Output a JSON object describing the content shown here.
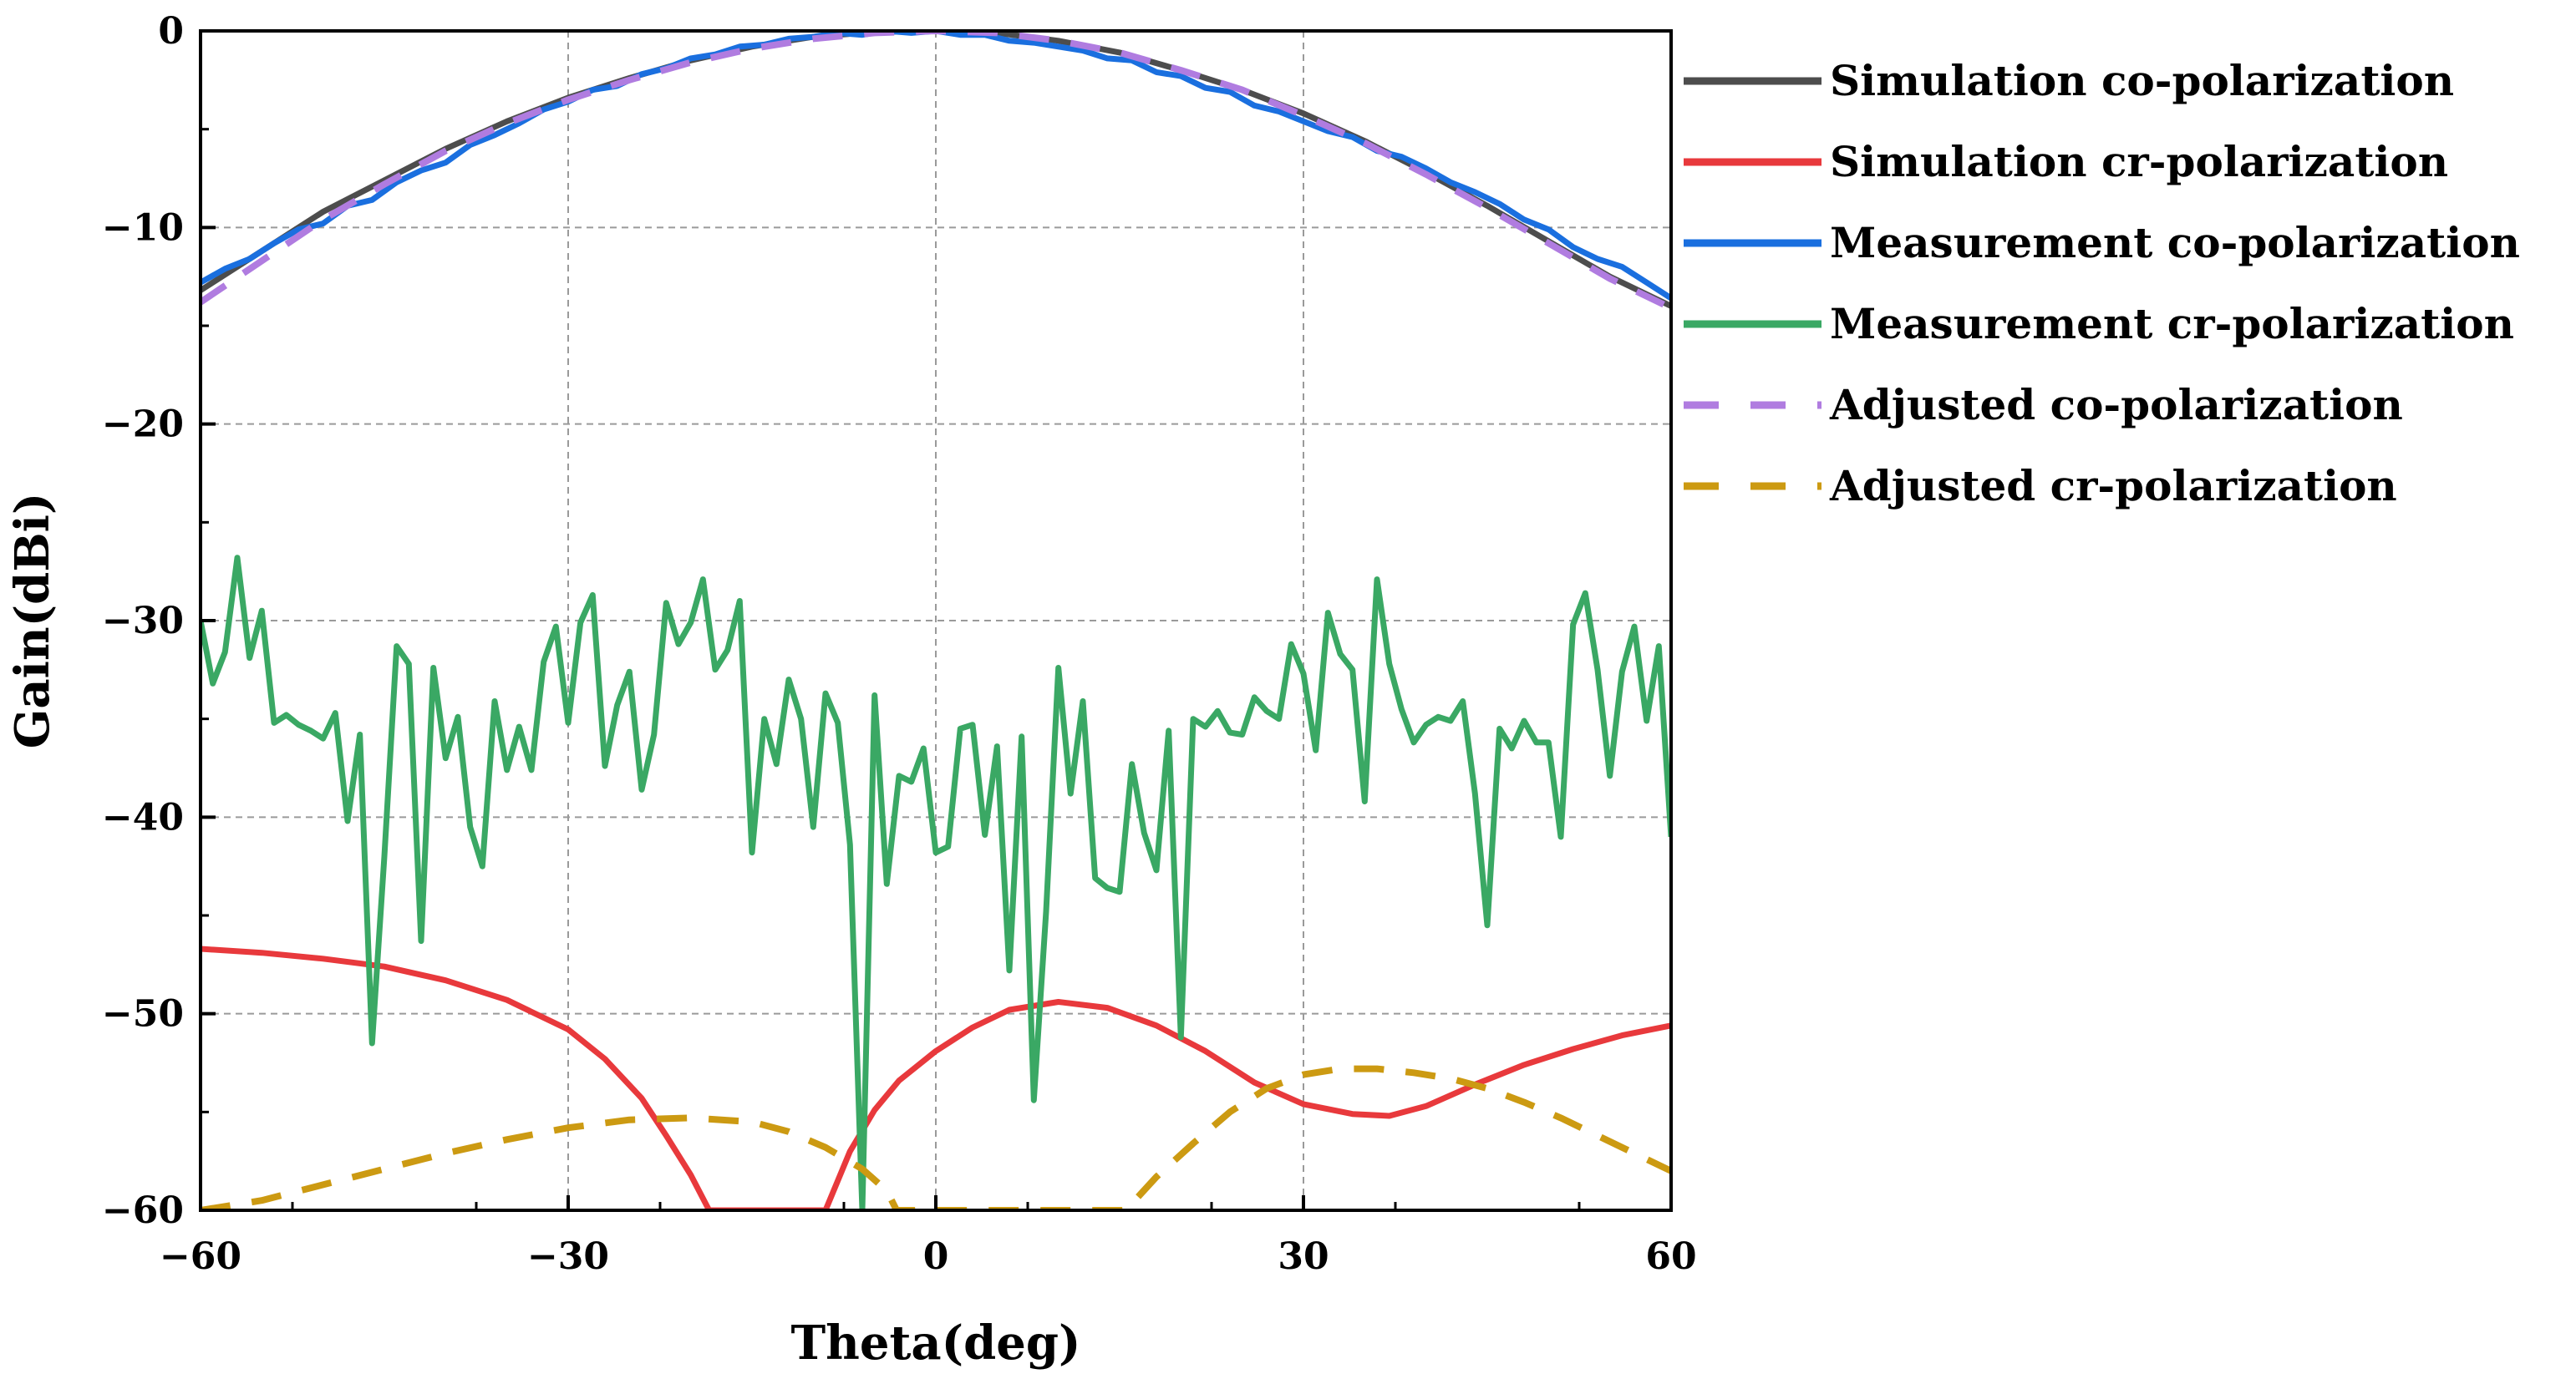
{
  "chart_data": {
    "type": "line",
    "title": "",
    "xlabel": "Theta(deg)",
    "ylabel": "Gain(dBi)",
    "xlim": [
      -60,
      60
    ],
    "ylim": [
      -60,
      0
    ],
    "xticks": [
      -60,
      -30,
      0,
      30,
      60
    ],
    "xtick_labels": [
      "−60",
      "−30",
      "0",
      "30",
      "60"
    ],
    "yticks": [
      0,
      -10,
      -20,
      -30,
      -40,
      -50,
      -60
    ],
    "ytick_labels": [
      "0",
      "−10",
      "−20",
      "−30",
      "−40",
      "−50",
      "−60"
    ],
    "grid": true,
    "legend_position": "right",
    "series": [
      {
        "name": "Simulation co-polarization",
        "color": "#4d4d4d",
        "dash": "solid",
        "x": [
          -60,
          -55,
          -50,
          -45,
          -40,
          -35,
          -30,
          -25,
          -20,
          -15,
          -10,
          -5,
          0,
          5,
          10,
          15,
          20,
          25,
          30,
          35,
          40,
          45,
          50,
          55,
          60
        ],
        "y": [
          -13.2,
          -11.2,
          -9.2,
          -7.6,
          -6.0,
          -4.6,
          -3.4,
          -2.4,
          -1.5,
          -0.8,
          -0.3,
          -0.05,
          0,
          -0.1,
          -0.5,
          -1.1,
          -2.0,
          -3.0,
          -4.2,
          -5.6,
          -7.2,
          -8.9,
          -10.7,
          -12.5,
          -14.0
        ]
      },
      {
        "name": "Simulation cr-polarization",
        "color": "#e8393c",
        "dash": "solid",
        "x": [
          -60,
          -55,
          -50,
          -45,
          -40,
          -35,
          -30,
          -27,
          -24,
          -22,
          -20,
          -18.5,
          -9,
          -7,
          -5,
          -3,
          0,
          3,
          6,
          10,
          14,
          18,
          22,
          26,
          30,
          34,
          37,
          40,
          44,
          48,
          52,
          56,
          60
        ],
        "y": [
          -46.7,
          -46.9,
          -47.2,
          -47.6,
          -48.3,
          -49.3,
          -50.8,
          -52.3,
          -54.3,
          -56.2,
          -58.2,
          -60,
          -60,
          -57.0,
          -54.9,
          -53.4,
          -51.9,
          -50.7,
          -49.8,
          -49.4,
          -49.7,
          -50.6,
          -51.9,
          -53.5,
          -54.6,
          -55.1,
          -55.2,
          -54.7,
          -53.6,
          -52.6,
          -51.8,
          -51.1,
          -50.6
        ]
      },
      {
        "name": "Measurement co-polarization",
        "color": "#1a6fdf",
        "dash": "solid",
        "x": [
          -60,
          -58,
          -56,
          -54,
          -52,
          -50,
          -48,
          -46,
          -44,
          -42,
          -40,
          -38,
          -36,
          -34,
          -32,
          -30,
          -28,
          -26,
          -24,
          -22,
          -20,
          -18,
          -16,
          -14,
          -12,
          -10,
          -8,
          -6,
          -4,
          -2,
          0,
          2,
          4,
          6,
          8,
          10,
          12,
          14,
          16,
          18,
          20,
          22,
          24,
          26,
          28,
          30,
          32,
          34,
          36,
          38,
          40,
          42,
          44,
          46,
          48,
          50,
          52,
          54,
          56,
          58,
          60
        ],
        "y": [
          -12.8,
          -12.1,
          -11.6,
          -10.8,
          -10.1,
          -9.8,
          -8.9,
          -8.6,
          -7.7,
          -7.1,
          -6.7,
          -5.8,
          -5.3,
          -4.7,
          -4.0,
          -3.6,
          -3.0,
          -2.8,
          -2.2,
          -1.9,
          -1.4,
          -1.2,
          -0.8,
          -0.7,
          -0.4,
          -0.3,
          -0.1,
          -0.2,
          0.0,
          -0.1,
          0.0,
          -0.2,
          -0.2,
          -0.5,
          -0.6,
          -0.8,
          -1.0,
          -1.4,
          -1.5,
          -2.1,
          -2.3,
          -2.9,
          -3.1,
          -3.8,
          -4.1,
          -4.6,
          -5.1,
          -5.4,
          -6.1,
          -6.4,
          -7.0,
          -7.7,
          -8.2,
          -8.8,
          -9.6,
          -10.1,
          -11.0,
          -11.6,
          -12.0,
          -12.8,
          -13.6
        ]
      },
      {
        "name": "Measurement cr-polarization",
        "color": "#3aa864",
        "dash": "solid",
        "x": [
          -60,
          -59,
          -58,
          -57,
          -56,
          -55,
          -54,
          -53,
          -52,
          -51,
          -50,
          -49,
          -48,
          -47,
          -46,
          -45,
          -44,
          -43,
          -42,
          -41,
          -40,
          -39,
          -38,
          -37,
          -36,
          -35,
          -34,
          -33,
          -32,
          -31,
          -30,
          -29,
          -28,
          -27,
          -26,
          -25,
          -24,
          -23,
          -22,
          -21,
          -20,
          -19,
          -18,
          -17,
          -16,
          -15,
          -14,
          -13,
          -12,
          -11,
          -10,
          -9,
          -8,
          -7,
          -6,
          -5,
          -4,
          -3,
          -2,
          -1,
          0,
          1,
          2,
          3,
          4,
          5,
          6,
          7,
          8,
          9,
          10,
          11,
          12,
          13,
          14,
          15,
          16,
          17,
          18,
          19,
          20,
          21,
          22,
          23,
          24,
          25,
          26,
          27,
          28,
          29,
          30,
          31,
          32,
          33,
          34,
          35,
          36,
          37,
          38,
          39,
          40,
          41,
          42,
          43,
          44,
          45,
          46,
          47,
          48,
          49,
          50,
          51,
          52,
          53,
          54,
          55,
          56,
          57,
          58,
          59,
          60
        ],
        "y": [
          -30.0,
          -33.2,
          -31.6,
          -26.8,
          -31.9,
          -29.5,
          -35.2,
          -34.8,
          -35.3,
          -35.6,
          -36.0,
          -34.7,
          -40.2,
          -35.8,
          -51.5,
          -42.0,
          -31.3,
          -32.2,
          -46.3,
          -32.4,
          -37.0,
          -34.9,
          -40.5,
          -42.5,
          -34.1,
          -37.6,
          -35.4,
          -37.6,
          -32.1,
          -30.3,
          -35.2,
          -30.1,
          -28.7,
          -37.4,
          -34.3,
          -32.6,
          -38.6,
          -35.8,
          -29.1,
          -31.2,
          -30.1,
          -27.9,
          -32.5,
          -31.5,
          -29.0,
          -41.8,
          -35.0,
          -37.3,
          -33.0,
          -35.0,
          -40.5,
          -33.7,
          -35.2,
          -41.4,
          -60.0,
          -33.8,
          -43.4,
          -37.9,
          -38.2,
          -36.5,
          -41.8,
          -41.5,
          -35.5,
          -35.3,
          -40.9,
          -36.4,
          -47.8,
          -35.9,
          -54.4,
          -44.8,
          -32.4,
          -38.8,
          -34.1,
          -43.1,
          -43.6,
          -43.8,
          -37.3,
          -40.8,
          -42.7,
          -35.6,
          -51.2,
          -35.0,
          -35.4,
          -34.6,
          -35.7,
          -35.8,
          -33.9,
          -34.6,
          -35.0,
          -31.2,
          -32.7,
          -36.6,
          -29.6,
          -31.7,
          -32.5,
          -39.2,
          -27.9,
          -32.2,
          -34.5,
          -36.2,
          -35.3,
          -34.9,
          -35.1,
          -34.1,
          -38.8,
          -45.5,
          -35.5,
          -36.5,
          -35.1,
          -36.2,
          -36.2,
          -41.0,
          -30.2,
          -28.6,
          -32.5,
          -37.9,
          -32.6,
          -30.3,
          -35.1,
          -31.3,
          -41.0
        ]
      },
      {
        "name": "Adjusted co-polarization",
        "color": "#b07ce0",
        "dash": "dashed",
        "x": [
          -60,
          -55,
          -50,
          -45,
          -40,
          -35,
          -30,
          -25,
          -20,
          -15,
          -10,
          -5,
          0,
          5,
          10,
          15,
          20,
          25,
          30,
          35,
          40,
          45,
          50,
          55,
          60
        ],
        "y": [
          -13.8,
          -11.7,
          -9.6,
          -7.8,
          -6.1,
          -4.7,
          -3.5,
          -2.5,
          -1.6,
          -0.9,
          -0.4,
          -0.1,
          0,
          -0.1,
          -0.5,
          -1.1,
          -2.0,
          -3.0,
          -4.3,
          -5.7,
          -7.3,
          -9.0,
          -10.8,
          -12.6,
          -14.1
        ]
      },
      {
        "name": "Adjusted cr-polarization",
        "color": "#cc9a12",
        "dash": "dashed",
        "x": [
          -60,
          -55,
          -50,
          -45,
          -40,
          -35,
          -30,
          -25,
          -20,
          -15,
          -12,
          -9,
          -6,
          -4,
          -3.2,
          15.5,
          18,
          21,
          24,
          27,
          30,
          33,
          36,
          39,
          42,
          45,
          48,
          51,
          54,
          57,
          60
        ],
        "y": [
          -60.0,
          -59.5,
          -58.7,
          -57.9,
          -57.1,
          -56.4,
          -55.8,
          -55.4,
          -55.3,
          -55.5,
          -56.0,
          -56.8,
          -57.9,
          -59.0,
          -60.0,
          -60.0,
          -58.3,
          -56.6,
          -55.0,
          -53.8,
          -53.1,
          -52.8,
          -52.8,
          -53.0,
          -53.3,
          -53.8,
          -54.5,
          -55.3,
          -56.2,
          -57.1,
          -58.0
        ]
      }
    ]
  }
}
